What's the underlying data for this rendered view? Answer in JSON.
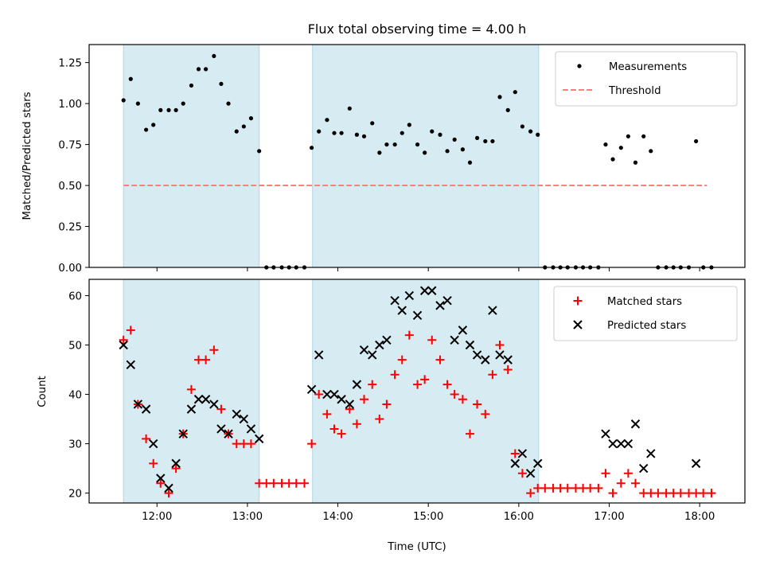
{
  "chart_data": [
    {
      "type": "scatter",
      "title": "Flux total observing time = 4.00 h",
      "xlabel": "",
      "ylabel": "Matched/Predicted stars",
      "ylim": [
        0,
        1.36
      ],
      "yticks": [
        0.0,
        0.25,
        0.5,
        0.75,
        1.0,
        1.25
      ],
      "yticklabels": [
        "0.00",
        "0.25",
        "0.50",
        "0.75",
        "1.00",
        "1.25"
      ],
      "xlim_hours": [
        11.25,
        18.5
      ],
      "xticks_hours": [
        12,
        13,
        14,
        15,
        16,
        17,
        18
      ],
      "grid": false,
      "legend_location": "upper right",
      "shaded_intervals_hours": [
        [
          11.63,
          13.13
        ],
        [
          13.72,
          16.22
        ]
      ],
      "threshold": {
        "name": "Threshold",
        "value": 0.5,
        "x_range_hours": [
          11.63,
          18.08
        ],
        "color": "#ff7f7f"
      },
      "series": [
        {
          "name": "Measurements",
          "color": "#000000",
          "x": [
            11.63,
            11.71,
            11.79,
            11.88,
            11.96,
            12.04,
            12.13,
            12.21,
            12.29,
            12.38,
            12.46,
            12.54,
            12.63,
            12.71,
            12.79,
            12.88,
            12.96,
            13.04,
            13.13,
            13.21,
            13.29,
            13.38,
            13.46,
            13.54,
            13.63,
            13.71,
            13.79,
            13.88,
            13.96,
            14.04,
            14.13,
            14.21,
            14.29,
            14.38,
            14.46,
            14.54,
            14.63,
            14.71,
            14.79,
            14.88,
            14.96,
            15.04,
            15.13,
            15.21,
            15.29,
            15.38,
            15.46,
            15.54,
            15.63,
            15.71,
            15.79,
            15.88,
            15.96,
            16.04,
            16.13,
            16.21,
            16.29,
            16.38,
            16.46,
            16.54,
            16.63,
            16.71,
            16.79,
            16.88,
            16.96,
            17.04,
            17.13,
            17.21,
            17.29,
            17.38,
            17.46,
            17.54,
            17.63,
            17.71,
            17.79,
            17.88,
            17.96,
            18.04,
            18.13
          ],
          "y": [
            1.02,
            1.15,
            1.0,
            0.84,
            0.87,
            0.96,
            0.96,
            0.96,
            1.0,
            1.11,
            1.21,
            1.21,
            1.29,
            1.12,
            1.0,
            0.83,
            0.86,
            0.91,
            0.71,
            0.0,
            0.0,
            0.0,
            0.0,
            0.0,
            0.0,
            0.73,
            0.83,
            0.9,
            0.82,
            0.82,
            0.97,
            0.81,
            0.8,
            0.88,
            0.7,
            0.75,
            0.75,
            0.82,
            0.87,
            0.75,
            0.7,
            0.83,
            0.81,
            0.71,
            0.78,
            0.72,
            0.64,
            0.79,
            0.77,
            0.77,
            1.04,
            0.96,
            1.07,
            0.86,
            0.83,
            0.81,
            0.0,
            0.0,
            0.0,
            0.0,
            0.0,
            0.0,
            0.0,
            0.0,
            0.75,
            0.66,
            0.73,
            0.8,
            0.64,
            0.8,
            0.71,
            0.0,
            0.0,
            0.0,
            0.0,
            0.0,
            0.77,
            0.0,
            0.0
          ]
        }
      ]
    },
    {
      "type": "scatter",
      "title": "",
      "xlabel": "Time (UTC)",
      "ylabel": "Count",
      "ylim": [
        18,
        63.3
      ],
      "yticks": [
        20,
        30,
        40,
        50,
        60
      ],
      "yticklabels": [
        "20",
        "30",
        "40",
        "50",
        "60"
      ],
      "xlim_hours": [
        11.25,
        18.5
      ],
      "xticks_hours": [
        12,
        13,
        14,
        15,
        16,
        17,
        18
      ],
      "xticklabels": [
        "12:00",
        "13:00",
        "14:00",
        "15:00",
        "16:00",
        "17:00",
        "18:00"
      ],
      "grid": false,
      "legend_location": "upper right",
      "shaded_intervals_hours": [
        [
          11.63,
          13.13
        ],
        [
          13.72,
          16.22
        ]
      ],
      "series": [
        {
          "name": "Matched stars",
          "color": "#ff0000",
          "marker": "plus",
          "x": [
            11.63,
            11.71,
            11.79,
            11.88,
            11.96,
            12.04,
            12.13,
            12.21,
            12.29,
            12.38,
            12.46,
            12.54,
            12.63,
            12.71,
            12.79,
            12.88,
            12.96,
            13.04,
            13.13,
            13.21,
            13.29,
            13.38,
            13.46,
            13.54,
            13.63,
            13.71,
            13.79,
            13.88,
            13.96,
            14.04,
            14.13,
            14.21,
            14.29,
            14.38,
            14.46,
            14.54,
            14.63,
            14.71,
            14.79,
            14.88,
            14.96,
            15.04,
            15.13,
            15.21,
            15.29,
            15.38,
            15.46,
            15.54,
            15.63,
            15.71,
            15.79,
            15.88,
            15.96,
            16.04,
            16.13,
            16.21,
            16.29,
            16.38,
            16.46,
            16.54,
            16.63,
            16.71,
            16.79,
            16.88,
            16.96,
            17.04,
            17.13,
            17.21,
            17.29,
            17.38,
            17.46,
            17.54,
            17.63,
            17.71,
            17.79,
            17.88,
            17.96,
            18.04,
            18.13
          ],
          "y": [
            51,
            53,
            38,
            31,
            26,
            22,
            20,
            25,
            32,
            41,
            47,
            47,
            49,
            37,
            32,
            30,
            30,
            30,
            22,
            22,
            22,
            22,
            22,
            22,
            22,
            30,
            40,
            36,
            33,
            32,
            37,
            34,
            39,
            42,
            35,
            38,
            44,
            47,
            52,
            42,
            43,
            51,
            47,
            42,
            40,
            39,
            32,
            38,
            36,
            44,
            50,
            45,
            28,
            24,
            20,
            21,
            21,
            21,
            21,
            21,
            21,
            21,
            21,
            21,
            24,
            20,
            22,
            24,
            22,
            20,
            20,
            20,
            20,
            20,
            20,
            20,
            20,
            20,
            20
          ]
        },
        {
          "name": "Predicted stars",
          "color": "#000000",
          "marker": "x",
          "x": [
            11.63,
            11.71,
            11.79,
            11.88,
            11.96,
            12.04,
            12.13,
            12.21,
            12.29,
            12.38,
            12.46,
            12.54,
            12.63,
            12.71,
            12.79,
            12.88,
            12.96,
            13.04,
            13.13,
            13.71,
            13.79,
            13.88,
            13.96,
            14.04,
            14.13,
            14.21,
            14.29,
            14.38,
            14.46,
            14.54,
            14.63,
            14.71,
            14.79,
            14.88,
            14.96,
            15.04,
            15.13,
            15.21,
            15.29,
            15.38,
            15.46,
            15.54,
            15.63,
            15.71,
            15.79,
            15.88,
            15.96,
            16.04,
            16.13,
            16.21,
            16.96,
            17.04,
            17.13,
            17.21,
            17.29,
            17.38,
            17.46,
            17.96
          ],
          "y": [
            50,
            46,
            38,
            37,
            30,
            23,
            21,
            26,
            32,
            37,
            39,
            39,
            38,
            33,
            32,
            36,
            35,
            33,
            31,
            41,
            48,
            40,
            40,
            39,
            38,
            42,
            49,
            48,
            50,
            51,
            59,
            57,
            60,
            56,
            61,
            61,
            58,
            59,
            51,
            53,
            50,
            48,
            47,
            57,
            48,
            47,
            26,
            28,
            24,
            26,
            32,
            30,
            30,
            30,
            34,
            25,
            28,
            26
          ]
        }
      ]
    }
  ]
}
